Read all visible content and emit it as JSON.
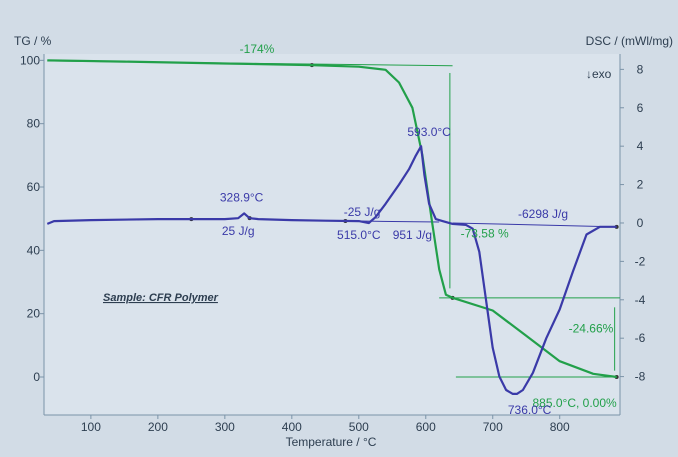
{
  "chart_data": {
    "type": "line",
    "y_left_label": "TG / %",
    "y_right_label": "DSC / (mWl/mg)",
    "x_label": "Temperature / °C",
    "exo_label": "↓exo",
    "sample_label": "Sample: CFR Polymer",
    "x_ticks": [
      100,
      200,
      300,
      400,
      500,
      600,
      700,
      800
    ],
    "y_left_ticks": [
      0,
      20,
      40,
      60,
      80,
      100
    ],
    "y_right_ticks": [
      -8,
      -6,
      -4,
      -2,
      0,
      2,
      4,
      6,
      8
    ],
    "xlim": [
      30,
      890
    ],
    "ylim_left": [
      -12,
      102
    ],
    "ylim_right": [
      -10,
      8.8
    ],
    "series": [
      {
        "axis": "left",
        "color": "#22a04a",
        "x": [
          35,
          150,
          300,
          430,
          500,
          540,
          560,
          580,
          595,
          610,
          620,
          630,
          640,
          700,
          750,
          800,
          850,
          885
        ],
        "y": [
          100,
          99.6,
          99,
          98.5,
          98,
          97,
          93,
          85,
          70,
          48,
          34,
          26,
          25,
          21,
          13,
          5,
          1,
          0
        ]
      },
      {
        "axis": "right",
        "color": "#3a3aa8",
        "x": [
          35,
          45,
          100,
          200,
          300,
          320,
          328.9,
          337,
          350,
          400,
          450,
          500,
          515,
          525,
          540,
          560,
          575,
          585,
          593,
          598,
          605,
          615,
          625,
          640,
          660,
          670,
          680,
          690,
          700,
          710,
          720,
          730,
          736,
          745,
          760,
          780,
          800,
          820,
          840,
          860,
          885
        ],
        "y": [
          -0.05,
          0.1,
          0.15,
          0.2,
          0.2,
          0.25,
          0.5,
          0.25,
          0.2,
          0.15,
          0.12,
          0.1,
          0.0,
          0.3,
          1.0,
          2.0,
          2.8,
          3.5,
          4.0,
          2.5,
          1.0,
          0.2,
          0.1,
          -0.05,
          -0.1,
          -0.3,
          -1.5,
          -4.0,
          -6.5,
          -8.0,
          -8.7,
          -8.9,
          -8.9,
          -8.7,
          -7.8,
          -6.0,
          -4.5,
          -2.5,
          -0.6,
          -0.2,
          -0.2
        ]
      }
    ],
    "annotations": [
      {
        "text": "-174%",
        "color": "#22a04a"
      },
      {
        "text": "328.9°C",
        "color": "#3a3aa8"
      },
      {
        "text": "25 J/g",
        "color": "#3a3aa8"
      },
      {
        "text": "-25 J/g",
        "color": "#3a3aa8"
      },
      {
        "text": "593.0°C",
        "color": "#3a3aa8"
      },
      {
        "text": "-73.58 %",
        "color": "#22a04a"
      },
      {
        "text": "515.0°C",
        "color": "#3a3aa8"
      },
      {
        "text": "951 J/g",
        "color": "#3a3aa8"
      },
      {
        "text": "-6298 J/g",
        "color": "#3a3aa8"
      },
      {
        "text": "-24.66%",
        "color": "#22a04a"
      },
      {
        "text": "885.0°C, 0.00%",
        "color": "#22a04a"
      },
      {
        "text": "736.0°C",
        "color": "#3a3aa8"
      }
    ]
  }
}
